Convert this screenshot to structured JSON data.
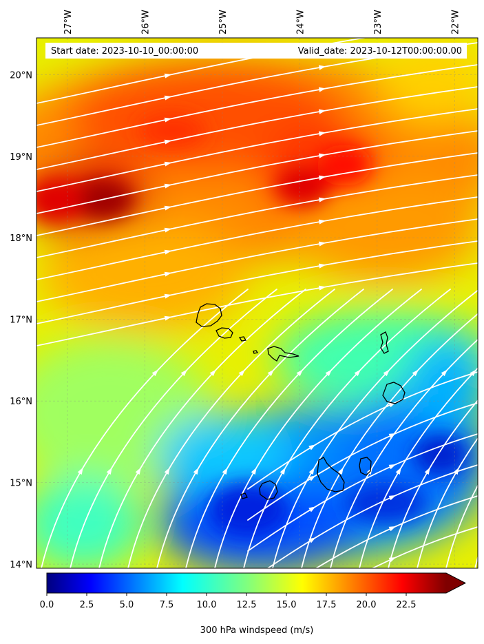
{
  "header": {
    "start_date": "Start date: 2023-10-10_00:00:00",
    "valid_date": "Valid_date: 2023-10-12T00:00:00.00"
  },
  "map": {
    "lon_labels": [
      "27°W",
      "26°W",
      "25°W",
      "24°W",
      "23°W",
      "22°W"
    ],
    "lat_labels": [
      "20°N",
      "19°N",
      "18°N",
      "17°N",
      "16°N",
      "15°N",
      "14°N"
    ],
    "lon_range": [
      -27.4,
      -21.7
    ],
    "lat_range": [
      13.95,
      20.45
    ],
    "colors": {
      "streamline": "#ffffff",
      "coastline": "#000000",
      "gridline": "#888888"
    }
  },
  "colorbar": {
    "label": "300 hPa windspeed (m/s)",
    "ticks": [
      "0.0",
      "2.5",
      "5.0",
      "7.5",
      "10.0",
      "12.5",
      "15.0",
      "17.5",
      "20.0",
      "22.5"
    ],
    "range": [
      0,
      25
    ],
    "extend": "max",
    "colormap": "jet"
  }
}
